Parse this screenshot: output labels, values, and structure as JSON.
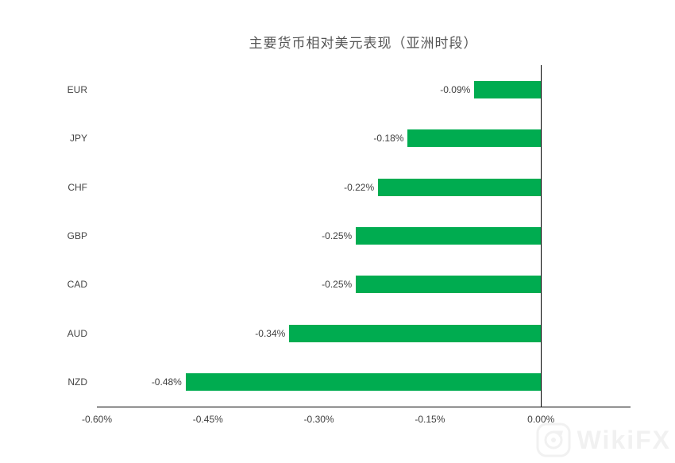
{
  "chart_data": {
    "type": "bar",
    "orientation": "horizontal",
    "title": "主要货币相对美元表现（亚洲时段）",
    "categories": [
      "EUR",
      "JPY",
      "CHF",
      "GBP",
      "CAD",
      "AUD",
      "NZD"
    ],
    "values": [
      -0.09,
      -0.18,
      -0.22,
      -0.25,
      -0.25,
      -0.34,
      -0.48
    ],
    "value_labels": [
      "-0.09%",
      "-0.18%",
      "-0.22%",
      "-0.25%",
      "-0.25%",
      "-0.34%",
      "-0.48%"
    ],
    "xlabel": "",
    "ylabel": "",
    "xlim": [
      -0.6,
      0.12
    ],
    "x_tick_values": [
      -0.6,
      -0.45,
      -0.3,
      -0.15,
      0.0
    ],
    "x_ticks": [
      "-0.60%",
      "-0.45%",
      "-0.30%",
      "-0.15%",
      "0.00%"
    ],
    "bar_color": "#00AC50",
    "grid": false,
    "legend": false,
    "unit": "percent"
  },
  "watermark": {
    "text": "WikiFX",
    "color": "#f1f1f1"
  },
  "colors": {
    "bar": "#00AC50",
    "axis": "#000000",
    "label_text": "#3f3f3f",
    "title_text": "#555555",
    "background": "#ffffff"
  }
}
